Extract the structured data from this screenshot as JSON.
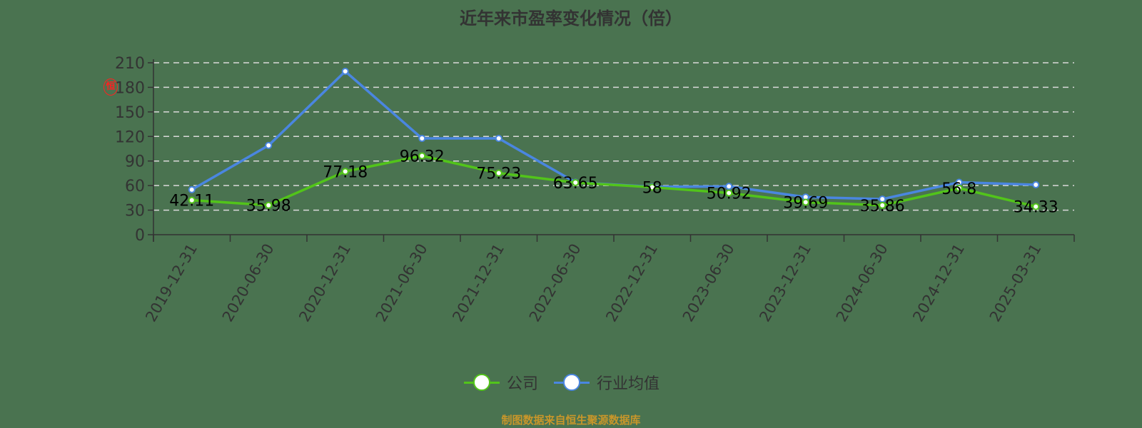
{
  "title": "近年来市盈率变化情况（倍）",
  "source_note": "制图数据来自恒生聚源数据库",
  "watermark": "恒",
  "legend": [
    {
      "name": "公司",
      "color": "#52c41a"
    },
    {
      "name": "行业均值",
      "color": "#4a86e0"
    }
  ],
  "chart_data": {
    "type": "line",
    "title": "近年来市盈率变化情况（倍）",
    "xlabel": "",
    "ylabel": "",
    "ylim": [
      0,
      210
    ],
    "yticks": [
      0,
      30,
      60,
      90,
      120,
      150,
      180,
      210
    ],
    "grid": true,
    "legend_position": "bottom",
    "categories": [
      "2019-12-31",
      "2020-06-30",
      "2020-12-31",
      "2021-06-30",
      "2021-12-31",
      "2022-06-30",
      "2022-12-31",
      "2023-06-30",
      "2023-12-31",
      "2024-06-30",
      "2024-12-31",
      "2025-03-31"
    ],
    "series": [
      {
        "name": "公司",
        "color": "#52c41a",
        "values": [
          42.11,
          35.98,
          77.18,
          96.32,
          75.23,
          63.65,
          58,
          50.92,
          39.69,
          35.86,
          56.8,
          34.33
        ],
        "labels": [
          "42.11",
          "35.98",
          "77.18",
          "96.32",
          "75.23",
          "63.65",
          "58",
          "50.92",
          "39.69",
          "35.86",
          "56.8",
          "34.33"
        ]
      },
      {
        "name": "行业均值",
        "color": "#4a86e0",
        "values": [
          55,
          109,
          199.5,
          117.6,
          117.6,
          64,
          58.5,
          59,
          46,
          43.5,
          64,
          61
        ]
      }
    ]
  }
}
